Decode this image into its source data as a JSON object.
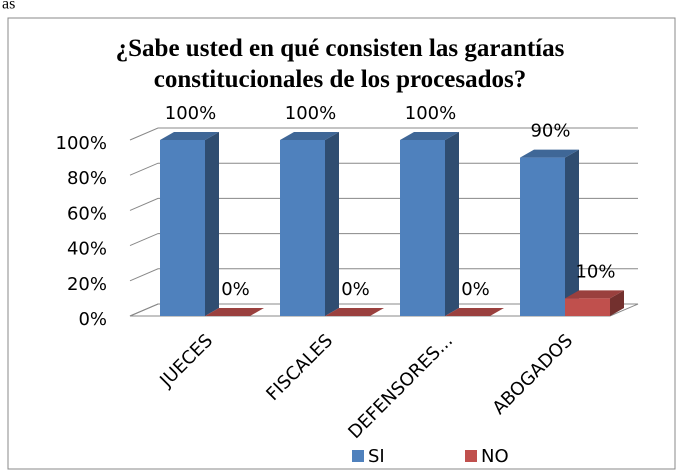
{
  "preceding_text": "as",
  "chart_data": {
    "type": "bar3d",
    "title": "¿Sabe usted en qué consisten las garantías constitucionales de los procesados?",
    "categories": [
      "JUECES",
      "FISCALES",
      "DEFENSORES...",
      "ABOGADOS"
    ],
    "series": [
      {
        "name": "SI",
        "color": "#4f81bd",
        "values": [
          100,
          100,
          100,
          90
        ],
        "value_labels": [
          "100%",
          "100%",
          "100%",
          "90%"
        ]
      },
      {
        "name": "NO",
        "color": "#c0504d",
        "values": [
          0,
          0,
          0,
          10
        ],
        "value_labels": [
          "0%",
          "0%",
          "0%",
          "10%"
        ]
      }
    ],
    "ylim": [
      0,
      100
    ],
    "yticks": [
      {
        "value": 0,
        "label": "0%"
      },
      {
        "value": 20,
        "label": "20%"
      },
      {
        "value": 40,
        "label": "40%"
      },
      {
        "value": 60,
        "label": "60%"
      },
      {
        "value": 80,
        "label": "80%"
      },
      {
        "value": 100,
        "label": "100%"
      }
    ],
    "grid": true,
    "legend": "bottom"
  }
}
